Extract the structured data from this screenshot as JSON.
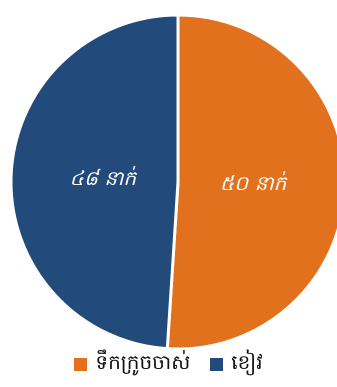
{
  "chart_data": {
    "type": "pie",
    "categories": [
      "ទឹកក្រូចចាស់",
      "ខៀវ"
    ],
    "values": [
      50,
      48
    ],
    "labels": [
      "៥០ នាក់",
      "៤៨ នាក់"
    ],
    "colors": [
      "#E2711D",
      "#224A7A"
    ],
    "start_angle_deg": 0,
    "legend_position": "bottom",
    "title": ""
  },
  "legend": {
    "items": [
      {
        "label": "ទឹកក្រូចចាស់",
        "color": "#E2711D"
      },
      {
        "label": "ខៀវ",
        "color": "#224A7A"
      }
    ]
  }
}
